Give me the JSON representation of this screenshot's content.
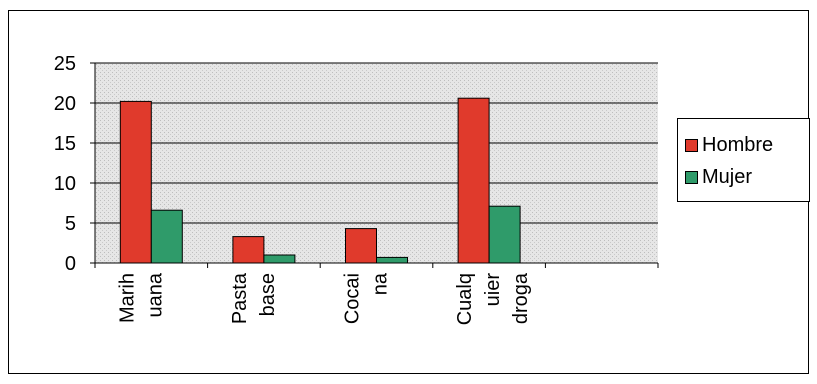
{
  "chart_data": {
    "type": "bar",
    "categories": [
      [
        "Marih",
        "uana"
      ],
      [
        "Pasta",
        "base"
      ],
      [
        "Cocai",
        "na"
      ],
      [
        "Cualq",
        "uier",
        "droga"
      ],
      []
    ],
    "series": [
      {
        "name": "Hombre",
        "color": "#e03a2c",
        "values": [
          20.2,
          3.3,
          4.3,
          20.6,
          null
        ]
      },
      {
        "name": "Mujer",
        "color": "#2f9b6a",
        "values": [
          6.6,
          1.0,
          0.7,
          7.1,
          null
        ]
      }
    ],
    "y_ticks": [
      "0",
      "5",
      "10",
      "15",
      "20",
      "25"
    ],
    "ylim": [
      0,
      25
    ],
    "grid": true,
    "legend_position": "right"
  }
}
